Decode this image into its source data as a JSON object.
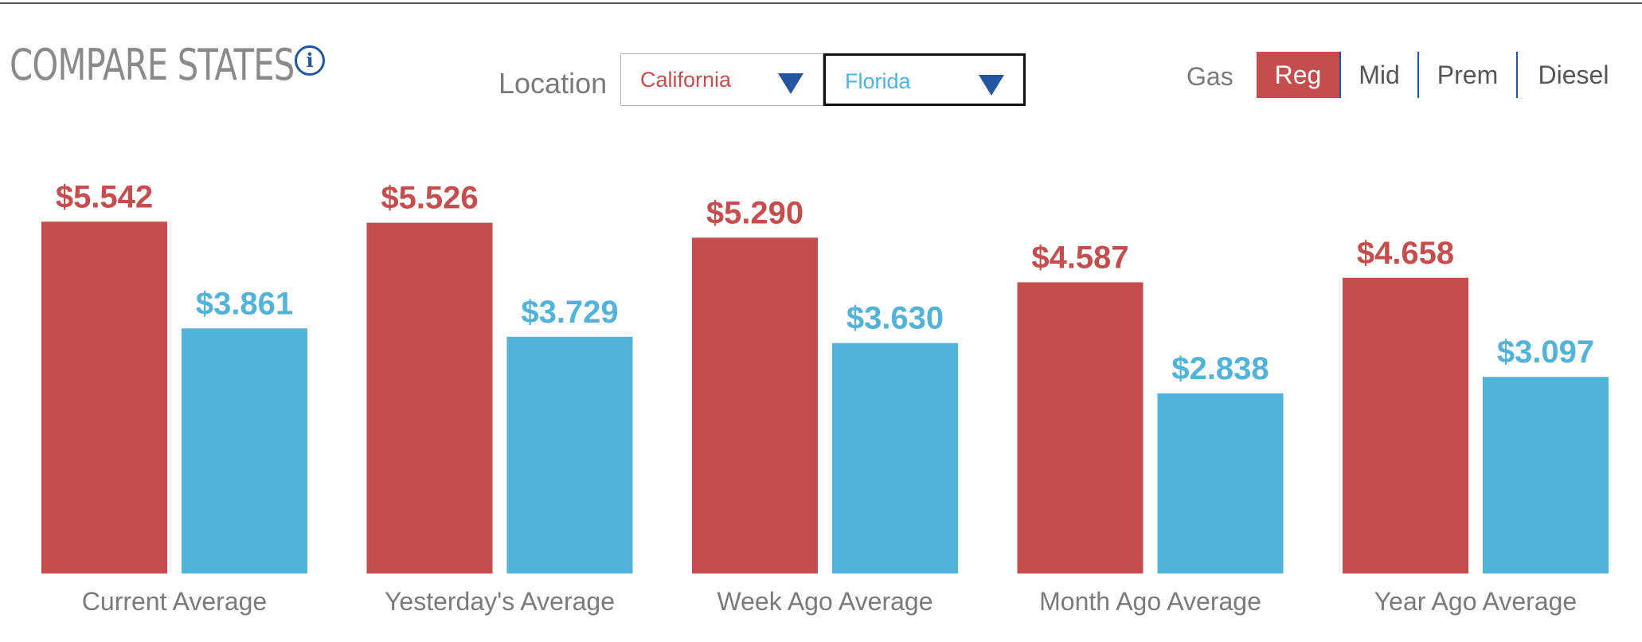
{
  "header": {
    "title": "COMPARE STATES",
    "info_glyph": "i",
    "location_label": "Location",
    "location_a": "California",
    "location_b": "Florida",
    "fuel_label": "Gas",
    "fuel_tabs": [
      {
        "label": "Reg",
        "active": true
      },
      {
        "label": "Mid",
        "active": false
      },
      {
        "label": "Prem",
        "active": false
      },
      {
        "label": "Diesel",
        "active": false
      }
    ]
  },
  "colors": {
    "state_a": "#c44e4e",
    "state_b": "#52b2d8",
    "accent": "#2455a0"
  },
  "chart_data": {
    "type": "bar",
    "title": "",
    "xlabel": "",
    "ylabel": "",
    "categories": [
      "Current Average",
      "Yesterday's Average",
      "Week Ago Average",
      "Month Ago Average",
      "Year Ago Average"
    ],
    "series": [
      {
        "name": "California",
        "values": [
          5.542,
          5.526,
          5.29,
          4.587,
          4.658
        ],
        "labels": [
          "$5.542",
          "$5.526",
          "$5.290",
          "$4.587",
          "$4.658"
        ]
      },
      {
        "name": "Florida",
        "values": [
          3.861,
          3.729,
          3.63,
          2.838,
          3.097
        ],
        "labels": [
          "$3.861",
          "$3.729",
          "$3.630",
          "$2.838",
          "$3.097"
        ]
      }
    ],
    "ylim": [
      0,
      6.5
    ],
    "grid": false,
    "axes_visible": false
  }
}
